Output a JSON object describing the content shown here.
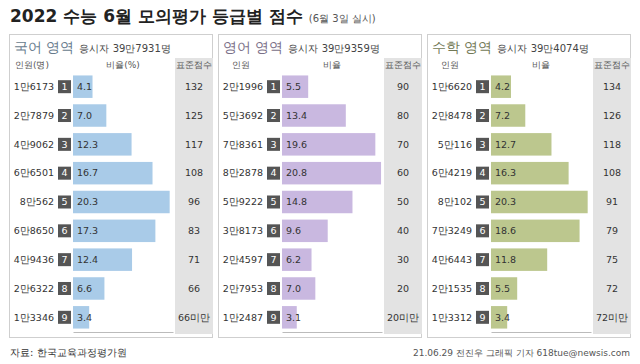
{
  "header": {
    "title": "2022 수능 6월 모의평가 등급별 점수",
    "subtitle": "(6월 3일 실시)"
  },
  "footer": {
    "source": "자료: 한국교육과정평가원",
    "credit": "21.06.29 전진우 그래픽 기자 618tue@newsis.com"
  },
  "chart_data": [
    {
      "type": "bar",
      "orientation": "horizontal",
      "title": "국어 영역",
      "subtitle": "응시자 39만7931명",
      "column_headers": [
        "인원(명)",
        "비율(%)",
        "표준점수"
      ],
      "categories": [
        "1",
        "2",
        "3",
        "4",
        "5",
        "6",
        "7",
        "8",
        "9"
      ],
      "counts": [
        "1만6173",
        "2만7879",
        "4만9062",
        "6만6501",
        "8만562",
        "6만8650",
        "4만9436",
        "2만6322",
        "1만3346"
      ],
      "values": [
        4.1,
        7.0,
        12.3,
        16.7,
        20.3,
        17.3,
        12.4,
        6.6,
        3.4
      ],
      "value_labels": [
        "4.1",
        "7.0",
        "12.3",
        "16.7",
        "20.3",
        "17.3",
        "12.4",
        "6.6",
        "3.4"
      ],
      "scores": [
        132,
        125,
        117,
        108,
        96,
        83,
        71,
        66,
        "66미만"
      ],
      "color": "#a9cbe8",
      "xlim": [
        0,
        21
      ],
      "tick_labels": false,
      "data_labels": true
    },
    {
      "type": "bar",
      "orientation": "horizontal",
      "title": "영어 영역",
      "subtitle": "응시자 39만9359명",
      "column_headers": [
        "인원",
        "비율",
        "표준점수"
      ],
      "categories": [
        "1",
        "2",
        "3",
        "4",
        "5",
        "6",
        "7",
        "8",
        "9"
      ],
      "counts": [
        "2만1996",
        "5만3692",
        "7만8361",
        "8만2878",
        "5만9222",
        "3만8173",
        "2만4597",
        "2만7953",
        "1만2487"
      ],
      "values": [
        5.5,
        13.4,
        19.6,
        20.8,
        14.8,
        9.6,
        6.2,
        7.0,
        3.1
      ],
      "value_labels": [
        "5.5",
        "13.4",
        "19.6",
        "20.8",
        "14.8",
        "9.6",
        "6.2",
        "7.0",
        "3.1"
      ],
      "scores": [
        90,
        80,
        70,
        60,
        50,
        40,
        30,
        20,
        "20미만"
      ],
      "color": "#c9b8e0",
      "xlim": [
        0,
        21
      ],
      "tick_labels": false,
      "data_labels": true
    },
    {
      "type": "bar",
      "orientation": "horizontal",
      "title": "수학 영역",
      "subtitle": "응시자 39만4074명",
      "column_headers": [
        "인원",
        "비율",
        "표준점수"
      ],
      "categories": [
        "1",
        "2",
        "3",
        "4",
        "5",
        "6",
        "7",
        "8",
        "9"
      ],
      "counts": [
        "1만6620",
        "2만8478",
        "5만116",
        "6만4219",
        "8만102",
        "7만3249",
        "4만6443",
        "2만1535",
        "1만3312"
      ],
      "values": [
        4.2,
        7.2,
        12.7,
        16.3,
        20.3,
        18.6,
        11.8,
        5.5,
        3.4
      ],
      "value_labels": [
        "4.2",
        "7.2",
        "12.7",
        "16.3",
        "20.3",
        "18.6",
        "11.8",
        "5.5",
        "3.4"
      ],
      "scores": [
        134,
        126,
        118,
        108,
        91,
        79,
        75,
        72,
        "72미만"
      ],
      "color": "#bcc78e",
      "xlim": [
        0,
        21
      ],
      "tick_labels": false,
      "data_labels": true
    }
  ]
}
